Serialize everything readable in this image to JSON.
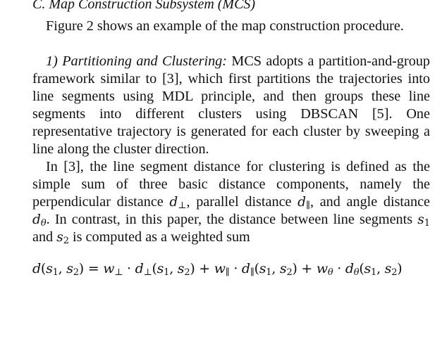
{
  "section": {
    "heading": "C. Map Construction Subsystem (MCS)"
  },
  "paragraphs": {
    "p1": "Figure 2 shows an example of the map construction procedure.",
    "p2_heading": "1) Partitioning and Clustering:",
    "p2_body": "MCS adopts a partition-and-group framework similar to [3], which first partitions the trajectories into line segments using MDL principle, and then groups these line segments into different clusters using DBSCAN [5]. One representative trajectory is generated for each cluster by sweeping a line along the cluster direction.",
    "p3_a": "In [3], the line segment distance for clustering is defined as the simple sum of three basic distance components, namely the perpendicular distance",
    "p3_b": ", parallel distance",
    "p3_c": ", and angle distance",
    "p3_d": ". In contrast, in this paper, the distance between line segments",
    "p3_e": "and",
    "p3_f": "is computed as a weighted sum"
  },
  "math": {
    "d": "d",
    "perp": "⊥",
    "par": "∥",
    "theta": "θ",
    "s": "s",
    "one": "1",
    "two": "2",
    "equation": "d(s1, s2) = w⊥ · d⊥(s1, s2) + w∥ · d∥(s1, s2) + wθ · dθ(s1, s2)"
  }
}
